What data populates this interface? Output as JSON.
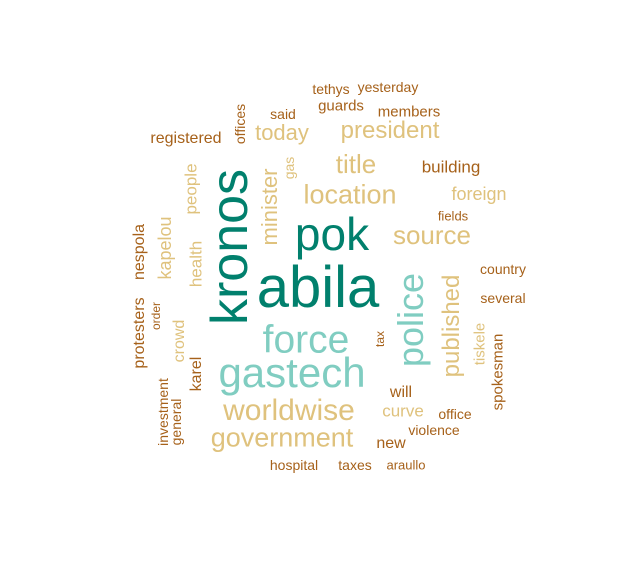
{
  "colors": {
    "teal_dark": "#01806d",
    "teal_light": "#80cdc1",
    "tan": "#dfc27d",
    "brown": "#a6611a"
  },
  "words": [
    {
      "id": "abila",
      "text": "abila",
      "color": "teal_dark"
    },
    {
      "id": "kronos",
      "text": "kronos",
      "color": "teal_dark"
    },
    {
      "id": "pok",
      "text": "pok",
      "color": "teal_dark"
    },
    {
      "id": "gastech",
      "text": "gastech",
      "color": "teal_light"
    },
    {
      "id": "force",
      "text": "force",
      "color": "teal_light"
    },
    {
      "id": "police",
      "text": "police",
      "color": "teal_light"
    },
    {
      "id": "worldwise",
      "text": "worldwise",
      "color": "tan"
    },
    {
      "id": "government",
      "text": "government",
      "color": "tan"
    },
    {
      "id": "location",
      "text": "location",
      "color": "tan"
    },
    {
      "id": "source",
      "text": "source",
      "color": "tan"
    },
    {
      "id": "published",
      "text": "published",
      "color": "tan"
    },
    {
      "id": "president",
      "text": "president",
      "color": "tan"
    },
    {
      "id": "title",
      "text": "title",
      "color": "tan"
    },
    {
      "id": "today",
      "text": "today",
      "color": "tan"
    },
    {
      "id": "minister",
      "text": "minister",
      "color": "tan"
    },
    {
      "id": "kapelou",
      "text": "kapelou",
      "color": "tan"
    },
    {
      "id": "health",
      "text": "health",
      "color": "tan"
    },
    {
      "id": "people",
      "text": "people",
      "color": "tan"
    },
    {
      "id": "crowd",
      "text": "crowd",
      "color": "tan"
    },
    {
      "id": "foreign",
      "text": "foreign",
      "color": "tan"
    },
    {
      "id": "curve",
      "text": "curve",
      "color": "tan"
    },
    {
      "id": "tiskele",
      "text": "tiskele",
      "color": "tan"
    },
    {
      "id": "gas",
      "text": "gas",
      "color": "tan"
    },
    {
      "id": "building",
      "text": "building",
      "color": "brown"
    },
    {
      "id": "nespola",
      "text": "nespola",
      "color": "brown"
    },
    {
      "id": "protesters",
      "text": "protesters",
      "color": "brown"
    },
    {
      "id": "karel",
      "text": "karel",
      "color": "brown"
    },
    {
      "id": "investment",
      "text": "investment",
      "color": "brown"
    },
    {
      "id": "general",
      "text": "general",
      "color": "brown"
    },
    {
      "id": "order",
      "text": "order",
      "color": "brown"
    },
    {
      "id": "registered",
      "text": "registered",
      "color": "brown"
    },
    {
      "id": "offices",
      "text": "offices",
      "color": "brown"
    },
    {
      "id": "said",
      "text": "said",
      "color": "brown"
    },
    {
      "id": "guards",
      "text": "guards",
      "color": "brown"
    },
    {
      "id": "members",
      "text": "members",
      "color": "brown"
    },
    {
      "id": "tethys",
      "text": "tethys",
      "color": "brown"
    },
    {
      "id": "yesterday",
      "text": "yesterday",
      "color": "brown"
    },
    {
      "id": "fields",
      "text": "fields",
      "color": "brown"
    },
    {
      "id": "country",
      "text": "country",
      "color": "brown"
    },
    {
      "id": "several",
      "text": "several",
      "color": "brown"
    },
    {
      "id": "spokesman",
      "text": "spokesman",
      "color": "brown"
    },
    {
      "id": "office",
      "text": "office",
      "color": "brown"
    },
    {
      "id": "violence",
      "text": "violence",
      "color": "brown"
    },
    {
      "id": "will",
      "text": "will",
      "color": "brown"
    },
    {
      "id": "new",
      "text": "new",
      "color": "brown"
    },
    {
      "id": "tax",
      "text": "tax",
      "color": "brown"
    },
    {
      "id": "hospital",
      "text": "hospital",
      "color": "brown"
    },
    {
      "id": "taxes",
      "text": "taxes",
      "color": "brown"
    },
    {
      "id": "araullo",
      "text": "araullo",
      "color": "brown"
    }
  ]
}
